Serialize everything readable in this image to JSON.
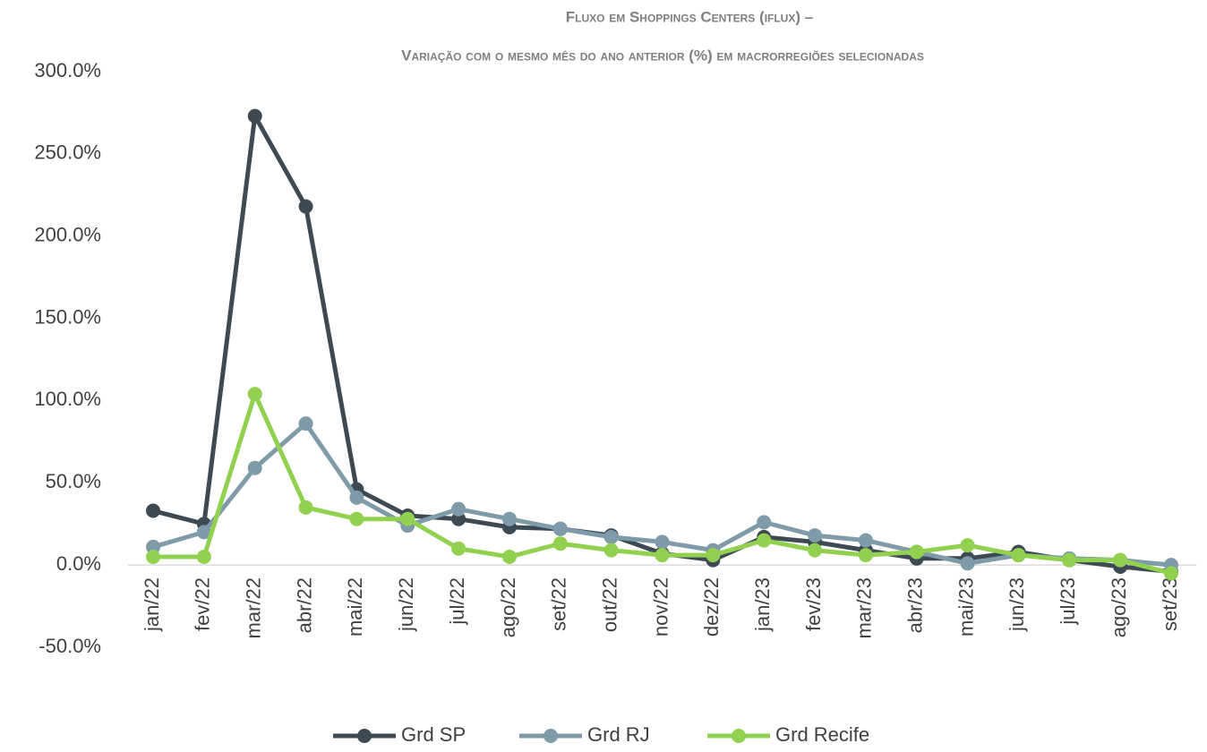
{
  "chart_data": {
    "type": "line",
    "title": "Fluxo em Shoppings Centers (iflux) –",
    "subtitle": "Variação com o mesmo mês do ano anterior (%) em macrorregiões selecionadas",
    "categories": [
      "jan/22",
      "fev/22",
      "mar/22",
      "abr/22",
      "mai/22",
      "jun/22",
      "jul/22",
      "ago/22",
      "set/22",
      "out/22",
      "nov/22",
      "dez/22",
      "jan/23",
      "fev/23",
      "mar/23",
      "abr/23",
      "mai/23",
      "jun/23",
      "jul/23",
      "ago/23",
      "set/23"
    ],
    "series": [
      {
        "name": "Grd SP",
        "color": "#3d4a54",
        "values": [
          33,
          25,
          273,
          218,
          46,
          30,
          28,
          23,
          22,
          18,
          7,
          3,
          17,
          14,
          9,
          4,
          4,
          8,
          3,
          -1,
          -4
        ]
      },
      {
        "name": "Grd RJ",
        "color": "#7f9aa8",
        "values": [
          11,
          20,
          59,
          86,
          41,
          24,
          34,
          28,
          22,
          17,
          14,
          9,
          26,
          18,
          15,
          8,
          1,
          6,
          4,
          3,
          0
        ]
      },
      {
        "name": "Grd Recife",
        "color": "#92d050",
        "values": [
          5,
          5,
          104,
          35,
          28,
          28,
          10,
          5,
          13,
          9,
          6,
          6,
          15,
          9,
          6,
          8,
          12,
          6,
          3,
          3,
          -5
        ]
      }
    ],
    "ylim": [
      -50,
      300
    ],
    "yticks": [
      {
        "value": -50,
        "label": "-50.0%"
      },
      {
        "value": 0,
        "label": "0.0%"
      },
      {
        "value": 50,
        "label": "50.0%"
      },
      {
        "value": 100,
        "label": "100.0%"
      },
      {
        "value": 150,
        "label": "150.0%"
      },
      {
        "value": 200,
        "label": "200.0%"
      },
      {
        "value": 250,
        "label": "250.0%"
      },
      {
        "value": 300,
        "label": "300.0%"
      }
    ],
    "grid": false,
    "legend": "bottom"
  }
}
